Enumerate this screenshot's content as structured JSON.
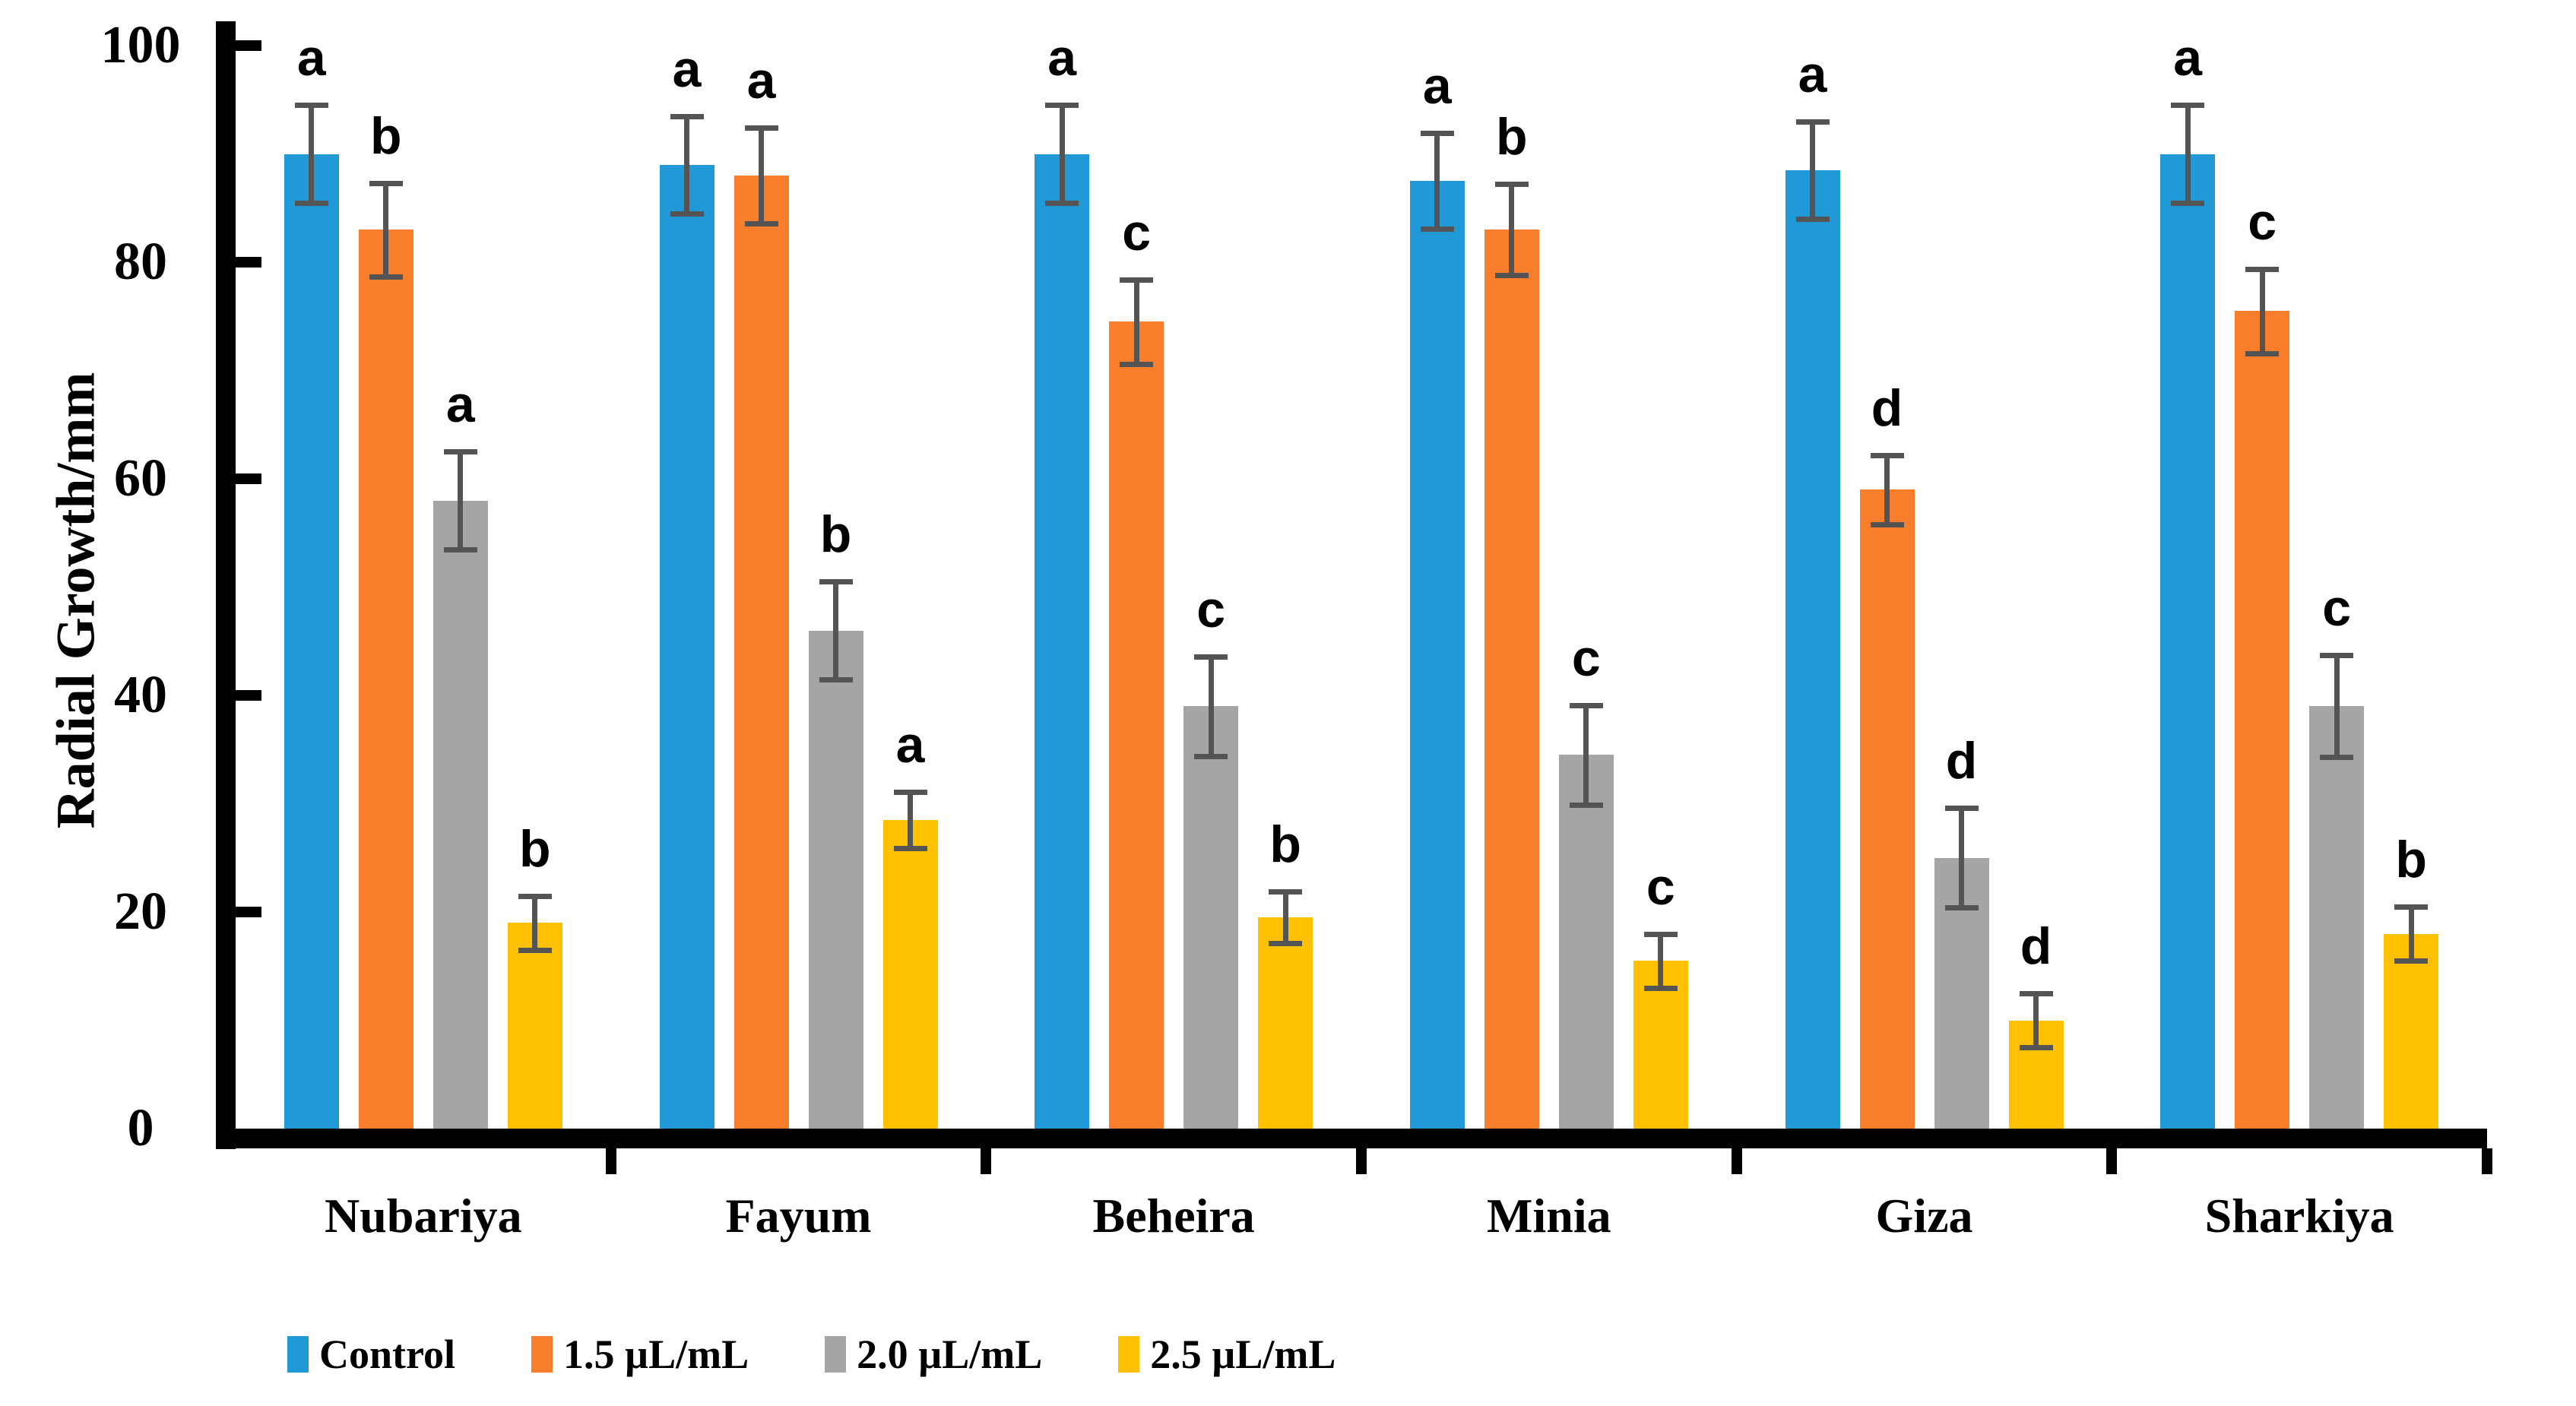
{
  "chart_data": {
    "type": "bar",
    "title": "",
    "ylabel": "Radial Growth/mm",
    "xlabel": "",
    "ylim": [
      0,
      100
    ],
    "yticks": [
      0,
      20,
      40,
      60,
      80,
      100
    ],
    "grid": false,
    "legend_position": "bottom-left",
    "error_bars": true,
    "categories": [
      "Nubariya",
      "Fayum",
      "Beheira",
      "Minia",
      "Giza",
      "Sharkiya"
    ],
    "series": [
      {
        "name": "Control",
        "color": "#2199D6",
        "values": [
          90,
          89,
          90,
          87.5,
          88.5,
          90
        ],
        "errors": [
          4.5,
          4.5,
          4.5,
          4.4,
          4.5,
          4.5
        ],
        "letters": [
          "a",
          "a",
          "a",
          "a",
          "a",
          "a"
        ]
      },
      {
        "name": "1.5 µL/mL",
        "color": "#F87E2B",
        "values": [
          83,
          88,
          74.5,
          83,
          59,
          75.5
        ],
        "errors": [
          4.3,
          4.4,
          3.9,
          4.2,
          3.2,
          3.9
        ],
        "letters": [
          "b",
          "a",
          "c",
          "b",
          "d",
          "c"
        ]
      },
      {
        "name": "2.0 µL/mL",
        "color": "#A7A5A3",
        "values": [
          58,
          46,
          39,
          34.5,
          25,
          39
        ],
        "errors": [
          4.5,
          4.5,
          4.6,
          4.6,
          4.6,
          4.7
        ],
        "letters": [
          "a",
          "b",
          "c",
          "c",
          "d",
          "c"
        ]
      },
      {
        "name": "2.5 µL/mL",
        "color": "#FDC101",
        "values": [
          19,
          28.5,
          19.5,
          15.5,
          10,
          18
        ],
        "errors": [
          2.5,
          2.6,
          2.4,
          2.5,
          2.5,
          2.5
        ],
        "letters": [
          "b",
          "a",
          "b",
          "c",
          "d",
          "b"
        ]
      }
    ]
  }
}
